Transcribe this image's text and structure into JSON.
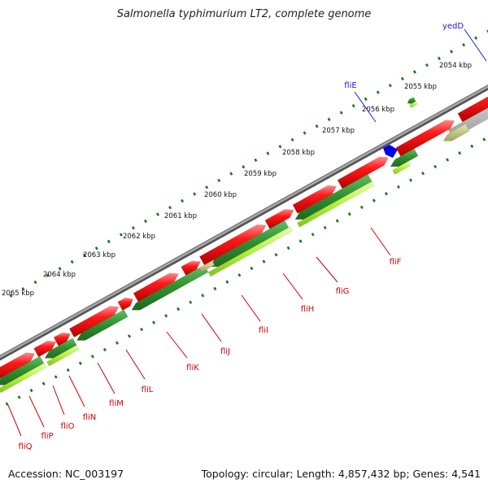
{
  "title": "Salmonella typhimurium LT2, complete genome",
  "footer": {
    "accession": "Accession: NC_003197",
    "summary": "Topology: circular; Length: 4,857,432 bp; Genes: 4,541"
  },
  "colors": {
    "backbone": "#8c8c8c",
    "forward_gene": "#ee0000",
    "reverse_gene": "#2f8f2f",
    "reverse_gene_light": "#b7f03a",
    "pseudo": "#bdbd7a",
    "gray_gene": "#bbbbbb",
    "tick": "#157a15",
    "forward_label": "#cc0000",
    "reverse_label": "#1a1acc"
  },
  "ruler": [
    {
      "label": "2054 kbp"
    },
    {
      "label": "2055 kbp"
    },
    {
      "label": "2056 kbp"
    },
    {
      "label": "2057 kbp"
    },
    {
      "label": "2058 kbp"
    },
    {
      "label": "2059 kbp"
    },
    {
      "label": "2060 kbp"
    },
    {
      "label": "2061 kbp"
    },
    {
      "label": "2062 kbp"
    },
    {
      "label": "2063 kbp"
    },
    {
      "label": "2064 kbp"
    },
    {
      "label": "2065 kbp"
    }
  ],
  "gene_labels": [
    {
      "name": "yedD",
      "strand": "top"
    },
    {
      "name": "fliE",
      "strand": "top"
    },
    {
      "name": "fliF",
      "strand": "bottom"
    },
    {
      "name": "fliG",
      "strand": "bottom"
    },
    {
      "name": "fliH",
      "strand": "bottom"
    },
    {
      "name": "fliI",
      "strand": "bottom"
    },
    {
      "name": "fliJ",
      "strand": "bottom"
    },
    {
      "name": "fliK",
      "strand": "bottom"
    },
    {
      "name": "fliL",
      "strand": "bottom"
    },
    {
      "name": "fliM",
      "strand": "bottom"
    },
    {
      "name": "fliN",
      "strand": "bottom"
    },
    {
      "name": "fliO",
      "strand": "bottom"
    },
    {
      "name": "fliP",
      "strand": "bottom"
    },
    {
      "name": "fliQ",
      "strand": "bottom"
    }
  ]
}
